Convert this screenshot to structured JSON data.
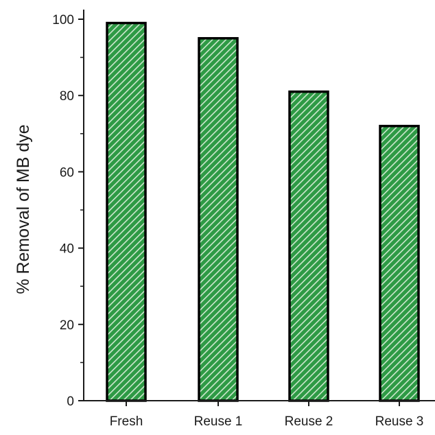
{
  "chart_data": {
    "type": "bar",
    "title": "",
    "xlabel": "",
    "ylabel": "% Removal of MB dye",
    "categories": [
      "Fresh",
      "Reuse 1",
      "Reuse 2",
      "Reuse 3"
    ],
    "values": [
      99,
      95,
      81,
      72
    ],
    "ylim": [
      0,
      100
    ],
    "yticks": [
      0,
      20,
      40,
      60,
      80,
      100
    ],
    "grid": false,
    "legend": "none",
    "bar_fill": "#2e9a45",
    "bar_hatch": "#cfe8d0",
    "bar_edge": "#000000"
  }
}
